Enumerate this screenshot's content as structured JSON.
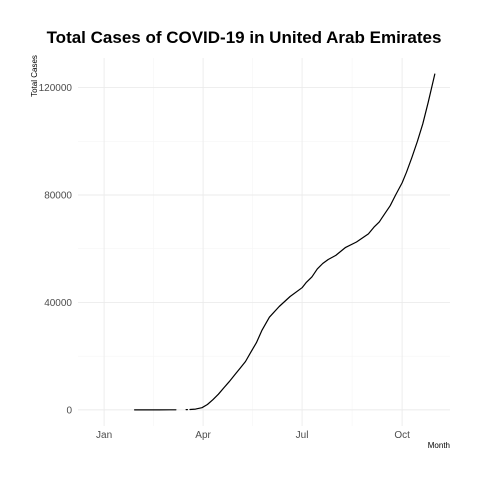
{
  "chart_data": {
    "type": "line",
    "title": "Total Cases of COVID-19 in United Arab Emirates",
    "xlabel": "Month",
    "ylabel": "Total Cases",
    "x_ticks": [
      "Jan",
      "Apr",
      "Jul",
      "Oct"
    ],
    "x_tick_dates": [
      "2020-01-01",
      "2020-04-01",
      "2020-07-01",
      "2020-10-01"
    ],
    "y_ticks": [
      0,
      40000,
      80000,
      120000
    ],
    "y_tick_labels": [
      "0",
      "40000",
      "80000",
      "120000"
    ],
    "xlim": [
      "2019-12-08",
      "2020-11-14"
    ],
    "ylim": [
      -6000,
      131000
    ],
    "grid": true,
    "series": [
      {
        "segments": [
          {
            "x": [
              "2020-01-29",
              "2020-02-10",
              "2020-02-20",
              "2020-03-01",
              "2020-03-07"
            ],
            "y": [
              5,
              8,
              9,
              19,
              45
            ]
          },
          {
            "x": [
              "2020-03-17"
            ],
            "y": [
              100
            ]
          },
          {
            "x": [
              "2020-03-20",
              "2020-03-25",
              "2020-03-31",
              "2020-04-05",
              "2020-04-10",
              "2020-04-15",
              "2020-04-20",
              "2020-04-25",
              "2020-05-01",
              "2020-05-05",
              "2020-05-10",
              "2020-05-15",
              "2020-05-20",
              "2020-05-25",
              "2020-06-01",
              "2020-06-10",
              "2020-06-20",
              "2020-07-01",
              "2020-07-05",
              "2020-07-10",
              "2020-07-15",
              "2020-07-20",
              "2020-07-25",
              "2020-08-01",
              "2020-08-10",
              "2020-08-20",
              "2020-08-31",
              "2020-09-05",
              "2020-09-10",
              "2020-09-15",
              "2020-09-20",
              "2020-09-25",
              "2020-10-01",
              "2020-10-05",
              "2020-10-10",
              "2020-10-15",
              "2020-10-20",
              "2020-10-25",
              "2020-10-31"
            ],
            "y": [
              140,
              300,
              800,
              2000,
              3800,
              5800,
              8200,
              10500,
              13500,
              15500,
              18000,
              21500,
              25000,
              29500,
              34500,
              38500,
              42200,
              45500,
              47500,
              49500,
              52500,
              54500,
              56000,
              57500,
              60500,
              62500,
              65500,
              68000,
              70000,
              73000,
              76000,
              80000,
              84500,
              88500,
              94000,
              100000,
              106500,
              114500,
              125000
            ]
          }
        ]
      }
    ]
  }
}
